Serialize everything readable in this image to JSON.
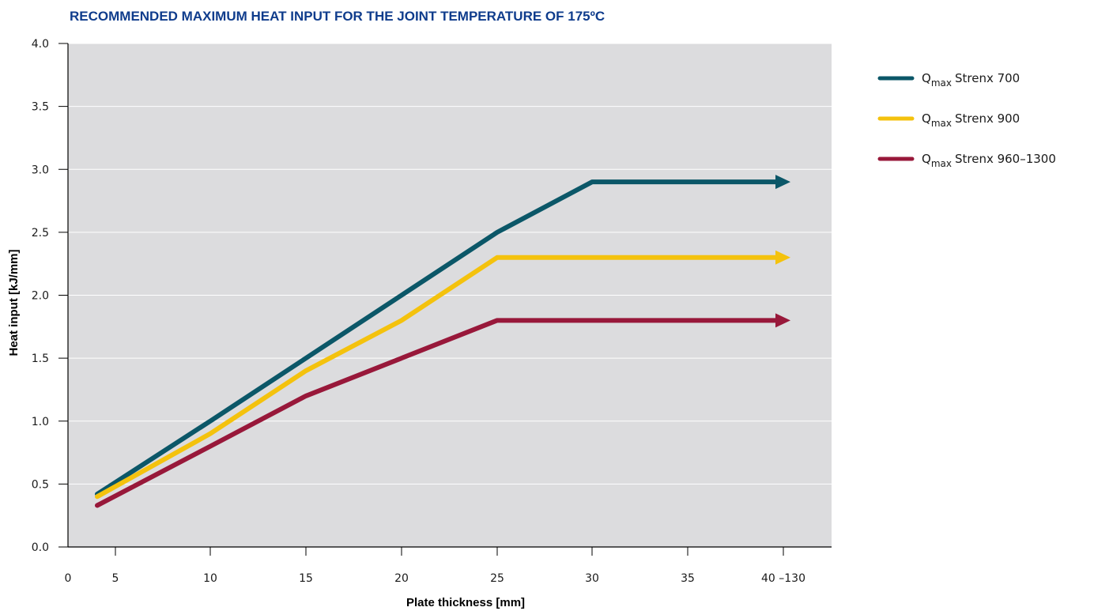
{
  "chart_data": {
    "type": "line",
    "title": "RECOMMENDED MAXIMUM HEAT INPUT FOR THE JOINT TEMPERATURE OF 175ºC",
    "xlabel": "Plate thickness [mm]",
    "ylabel": "Heat input [kJ/mm]",
    "xlim": [
      0,
      40
    ],
    "ylim": [
      0,
      4.0
    ],
    "x_tick_labels": [
      "0",
      "5",
      "10",
      "15",
      "20",
      "25",
      "30",
      "35",
      "40 –130"
    ],
    "y_tick_labels": [
      "0.0",
      "0.5",
      "1.0",
      "1.5",
      "2.0",
      "2.5",
      "3.0",
      "3.5",
      "4.0"
    ],
    "grid": true,
    "legend_position": "right",
    "series": [
      {
        "name": "Strenx 700",
        "legend_prefix": "Q",
        "legend_subscript": "max",
        "color": "#0b5768",
        "x": [
          4,
          10,
          15,
          20,
          25,
          30,
          35,
          40
        ],
        "y": [
          0.42,
          1.0,
          1.5,
          2.0,
          2.5,
          2.9,
          2.9,
          2.9
        ],
        "arrow_end": true
      },
      {
        "name": "Strenx 900",
        "legend_prefix": "Q",
        "legend_subscript": "max",
        "color": "#f4c20d",
        "x": [
          4,
          10,
          15,
          20,
          25,
          30,
          35,
          40
        ],
        "y": [
          0.4,
          0.9,
          1.4,
          1.8,
          2.3,
          2.3,
          2.3,
          2.3
        ],
        "arrow_end": true
      },
      {
        "name": "Strenx 960–1300",
        "legend_prefix": "Q",
        "legend_subscript": "max",
        "color": "#98183a",
        "x": [
          4,
          10,
          15,
          20,
          25,
          30,
          35,
          40
        ],
        "y": [
          0.33,
          0.8,
          1.2,
          1.5,
          1.8,
          1.8,
          1.8,
          1.8
        ],
        "arrow_end": true
      }
    ]
  }
}
